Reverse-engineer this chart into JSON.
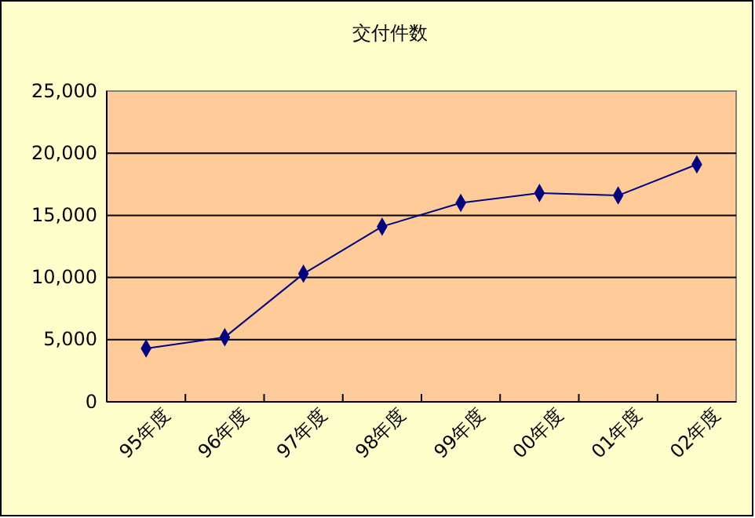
{
  "chart_data": {
    "type": "line",
    "title": "交付件数",
    "categories": [
      "95年度",
      "96年度",
      "97年度",
      "98年度",
      "99年度",
      "00年度",
      "01年度",
      "02年度"
    ],
    "series": [
      {
        "color": "#000080",
        "values": [
          4300,
          5200,
          10300,
          14100,
          16000,
          16800,
          16600,
          19100
        ]
      }
    ],
    "ylim": [
      0,
      25000
    ],
    "yticks": [
      {
        "value": 0,
        "label": "0"
      },
      {
        "value": 5000,
        "label": "5,000"
      },
      {
        "value": 10000,
        "label": "10,000"
      },
      {
        "value": 15000,
        "label": "15,000"
      },
      {
        "value": 20000,
        "label": "20,000"
      },
      {
        "value": 25000,
        "label": "25,000"
      }
    ],
    "grid": "y",
    "marker": "diamond",
    "line_style": "solid"
  }
}
